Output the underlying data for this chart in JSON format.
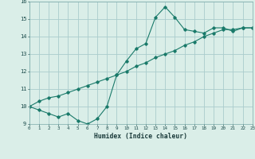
{
  "xlabel": "Humidex (Indice chaleur)",
  "x": [
    0,
    1,
    2,
    3,
    4,
    5,
    6,
    7,
    8,
    9,
    10,
    11,
    12,
    13,
    14,
    15,
    16,
    17,
    18,
    19,
    20,
    21,
    22,
    23
  ],
  "line1": [
    10.0,
    9.8,
    9.6,
    9.4,
    9.6,
    9.2,
    9.0,
    9.3,
    10.0,
    11.8,
    12.6,
    13.3,
    13.6,
    15.1,
    15.7,
    15.1,
    14.4,
    14.3,
    14.2,
    14.5,
    14.5,
    14.3,
    14.5,
    14.5
  ],
  "line2": [
    10.0,
    10.3,
    10.5,
    10.6,
    10.8,
    11.0,
    11.2,
    11.4,
    11.6,
    11.8,
    12.0,
    12.3,
    12.5,
    12.8,
    13.0,
    13.2,
    13.5,
    13.7,
    14.0,
    14.2,
    14.4,
    14.4,
    14.5,
    14.5
  ],
  "line_color": "#1a7a6a",
  "bg_color": "#daeee8",
  "grid_color": "#aacccc",
  "ylim": [
    9,
    16
  ],
  "xlim": [
    0,
    23
  ]
}
